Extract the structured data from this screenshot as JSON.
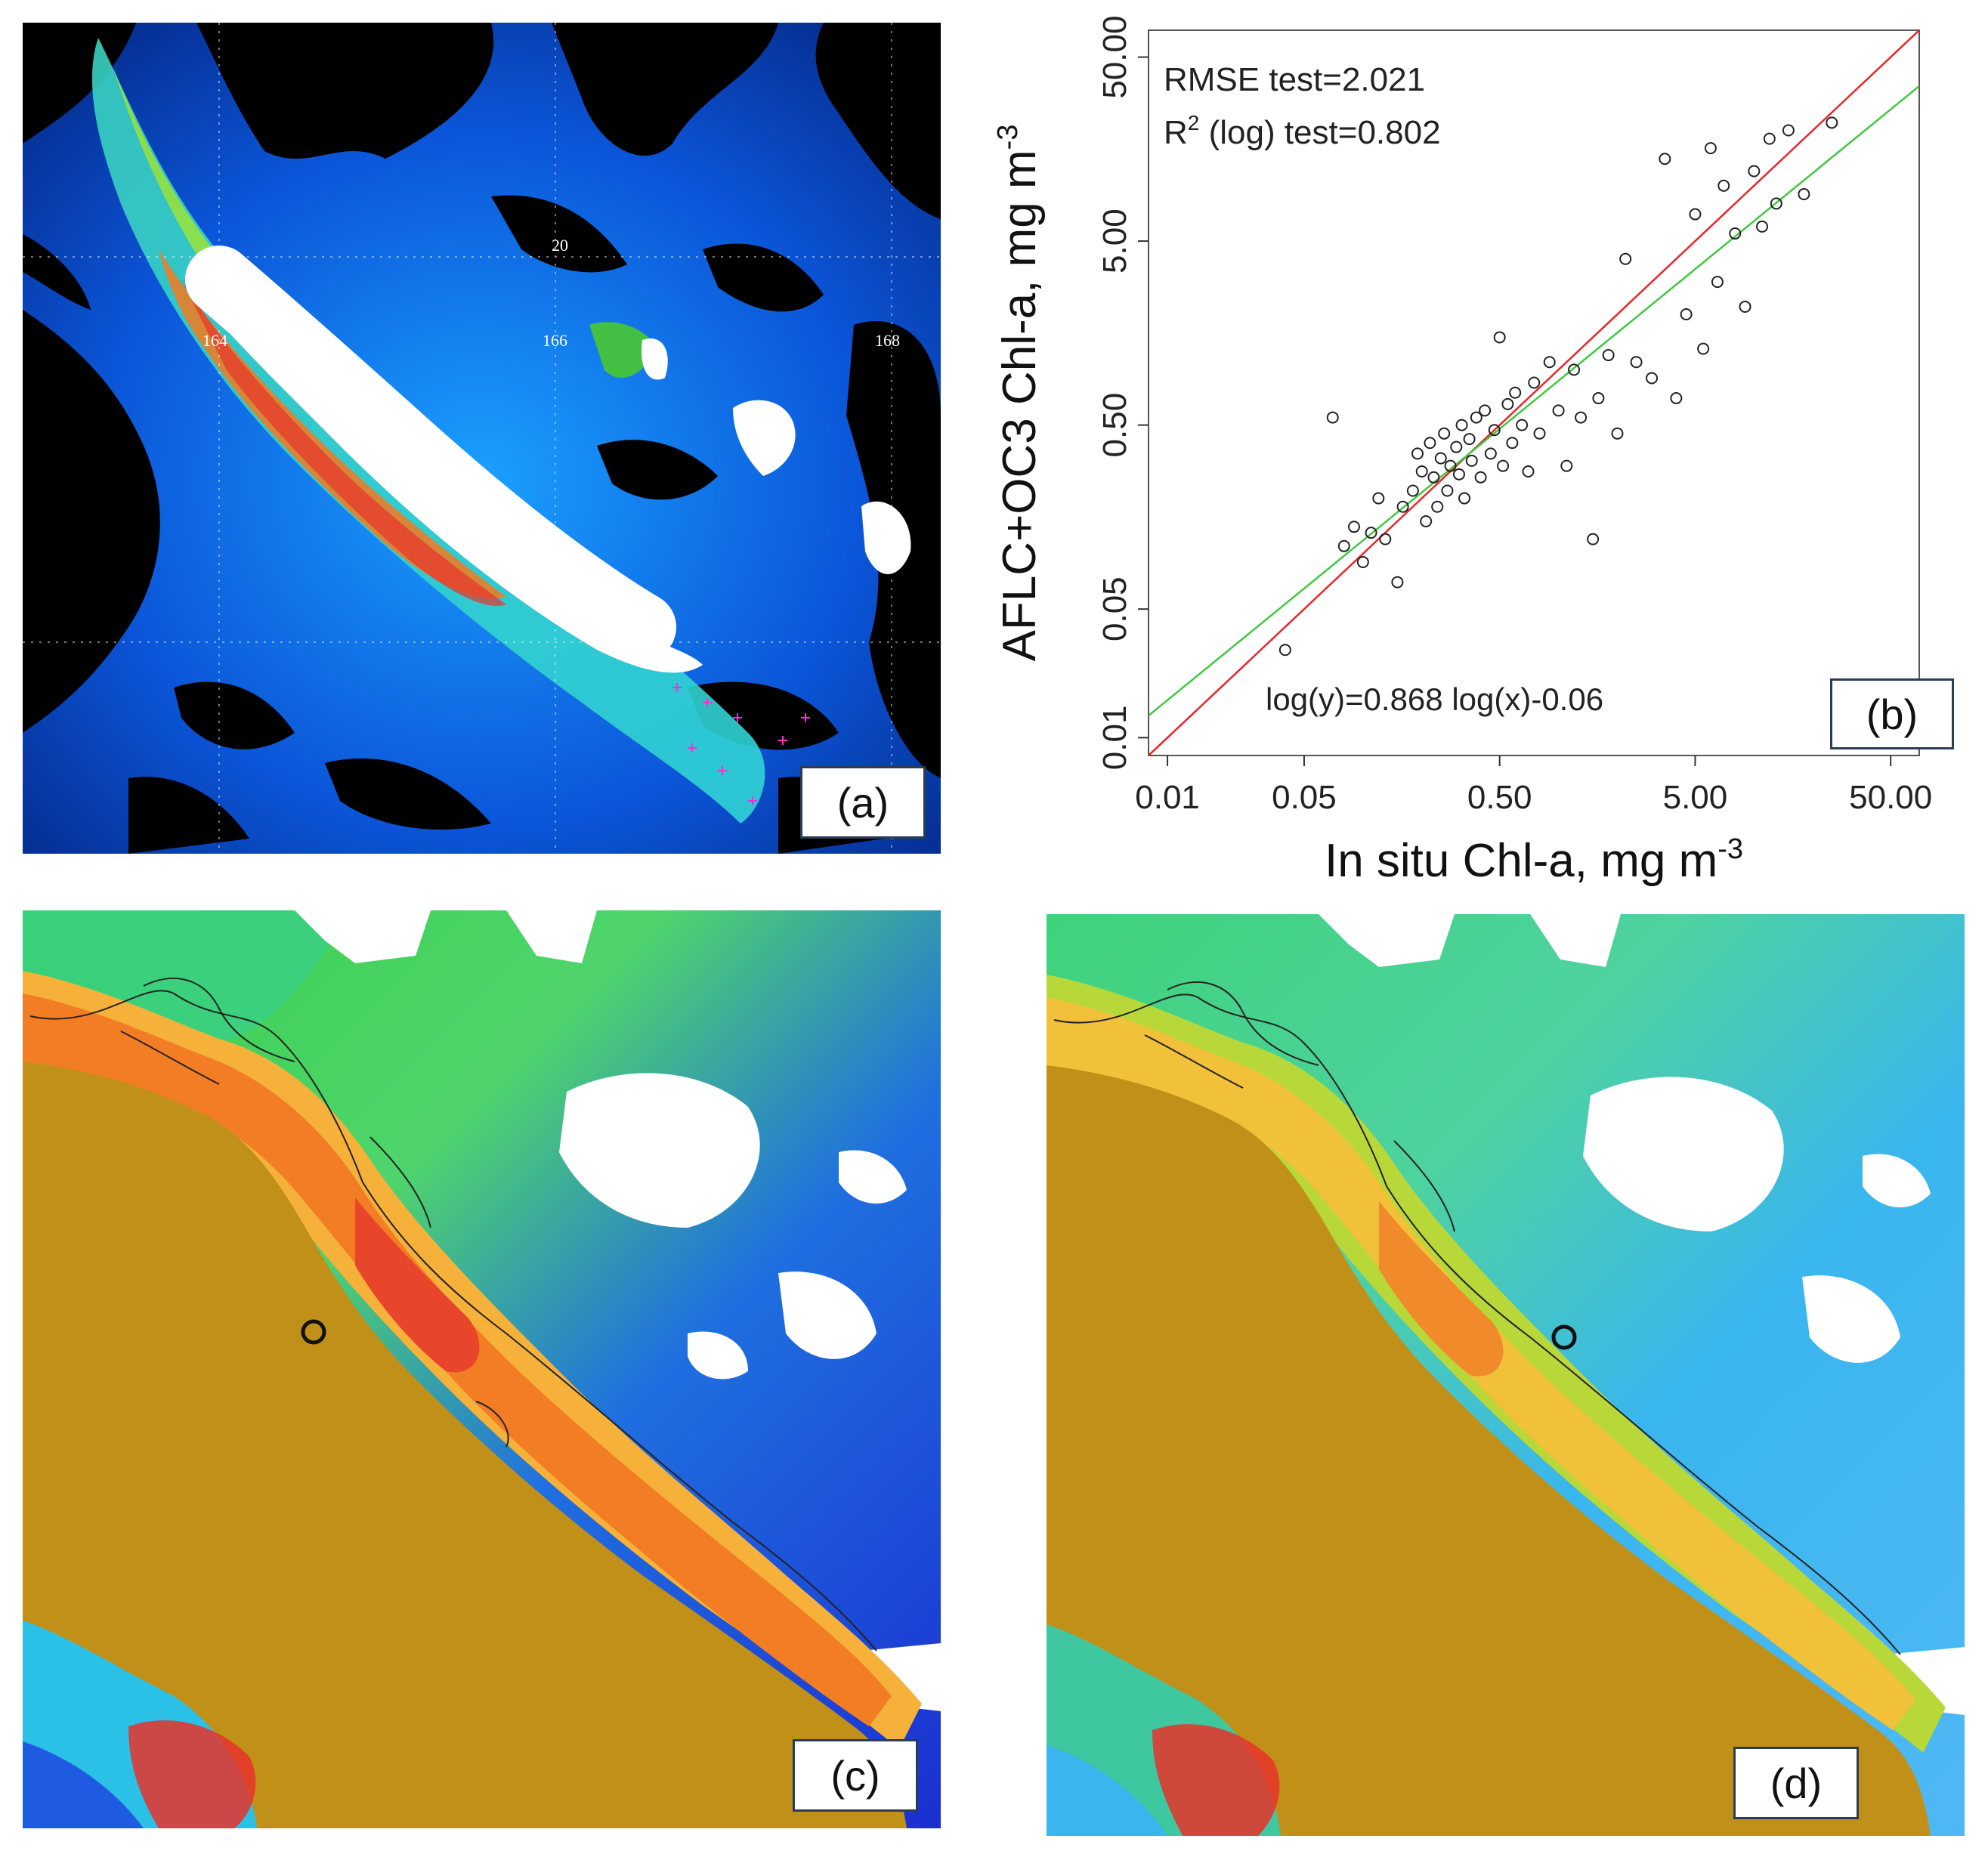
{
  "panels": {
    "a": {
      "label": "(a)",
      "grid_labels": [
        "20",
        "164",
        "166",
        "168"
      ]
    },
    "b": {
      "label": "(b)"
    },
    "c": {
      "label": "(c)"
    },
    "d": {
      "label": "(d)"
    }
  },
  "chart_data": {
    "type": "scatter",
    "xlabel_main": "In situ Chl-a, mg m",
    "xlabel_sup": "-3",
    "ylabel_main": "AFLC+OC3 Chl-a, mg m",
    "ylabel_sup": "-3",
    "x_scale": "log",
    "y_scale": "log",
    "xlim": [
      0.008,
      70
    ],
    "ylim": [
      0.008,
      70
    ],
    "x_ticks": [
      "0.01",
      "0.05",
      "0.50",
      "5.00",
      "50.00"
    ],
    "y_ticks": [
      "0.01",
      "0.05",
      "0.50",
      "5.00",
      "50.00"
    ],
    "grid": false,
    "annotations": {
      "rmse": "RMSE test=2.021",
      "r2_prefix": "R",
      "r2_sup": "2",
      "r2_rest": " (log) test=0.802",
      "equation": "log(y)=0.868 log(x)-0.06"
    },
    "lines": [
      {
        "kind": "one-to-one",
        "color": "#e8252a",
        "slope": 1.0,
        "intercept": 0.0
      },
      {
        "kind": "regression",
        "color": "#3ec83e",
        "slope": 0.868,
        "intercept": -0.06
      }
    ],
    "point_color": "#222222",
    "points_sample": [
      [
        0.04,
        0.03
      ],
      [
        0.07,
        0.55
      ],
      [
        0.08,
        0.11
      ],
      [
        0.09,
        0.14
      ],
      [
        0.1,
        0.09
      ],
      [
        0.11,
        0.13
      ],
      [
        0.12,
        0.2
      ],
      [
        0.13,
        0.12
      ],
      [
        0.15,
        0.07
      ],
      [
        0.16,
        0.18
      ],
      [
        0.18,
        0.22
      ],
      [
        0.19,
        0.35
      ],
      [
        0.2,
        0.28
      ],
      [
        0.21,
        0.15
      ],
      [
        0.22,
        0.4
      ],
      [
        0.23,
        0.26
      ],
      [
        0.24,
        0.18
      ],
      [
        0.25,
        0.33
      ],
      [
        0.26,
        0.45
      ],
      [
        0.27,
        0.22
      ],
      [
        0.28,
        0.3
      ],
      [
        0.3,
        0.38
      ],
      [
        0.31,
        0.27
      ],
      [
        0.32,
        0.5
      ],
      [
        0.33,
        0.2
      ],
      [
        0.35,
        0.42
      ],
      [
        0.36,
        0.32
      ],
      [
        0.38,
        0.55
      ],
      [
        0.4,
        0.26
      ],
      [
        0.42,
        0.6
      ],
      [
        0.45,
        0.35
      ],
      [
        0.47,
        0.47
      ],
      [
        0.5,
        1.5
      ],
      [
        0.52,
        0.3
      ],
      [
        0.55,
        0.65
      ],
      [
        0.58,
        0.4
      ],
      [
        0.6,
        0.75
      ],
      [
        0.65,
        0.5
      ],
      [
        0.7,
        0.28
      ],
      [
        0.75,
        0.85
      ],
      [
        0.8,
        0.45
      ],
      [
        0.9,
        1.1
      ],
      [
        1.0,
        0.6
      ],
      [
        1.1,
        0.3
      ],
      [
        1.2,
        1.0
      ],
      [
        1.3,
        0.55
      ],
      [
        1.5,
        0.12
      ],
      [
        1.6,
        0.7
      ],
      [
        1.8,
        1.2
      ],
      [
        2.0,
        0.45
      ],
      [
        2.2,
        4.0
      ],
      [
        2.5,
        1.1
      ],
      [
        3.0,
        0.9
      ],
      [
        3.5,
        14.0
      ],
      [
        4.0,
        0.7
      ],
      [
        4.5,
        2.0
      ],
      [
        5.0,
        7.0
      ],
      [
        5.5,
        1.3
      ],
      [
        6.0,
        16.0
      ],
      [
        6.5,
        3.0
      ],
      [
        7.0,
        10.0
      ],
      [
        8.0,
        5.5
      ],
      [
        9.0,
        2.2
      ],
      [
        10.0,
        12.0
      ],
      [
        11.0,
        6.0
      ],
      [
        12.0,
        18.0
      ],
      [
        13.0,
        8.0
      ],
      [
        15.0,
        20.0
      ],
      [
        18.0,
        9.0
      ],
      [
        25.0,
        22.0
      ]
    ]
  }
}
